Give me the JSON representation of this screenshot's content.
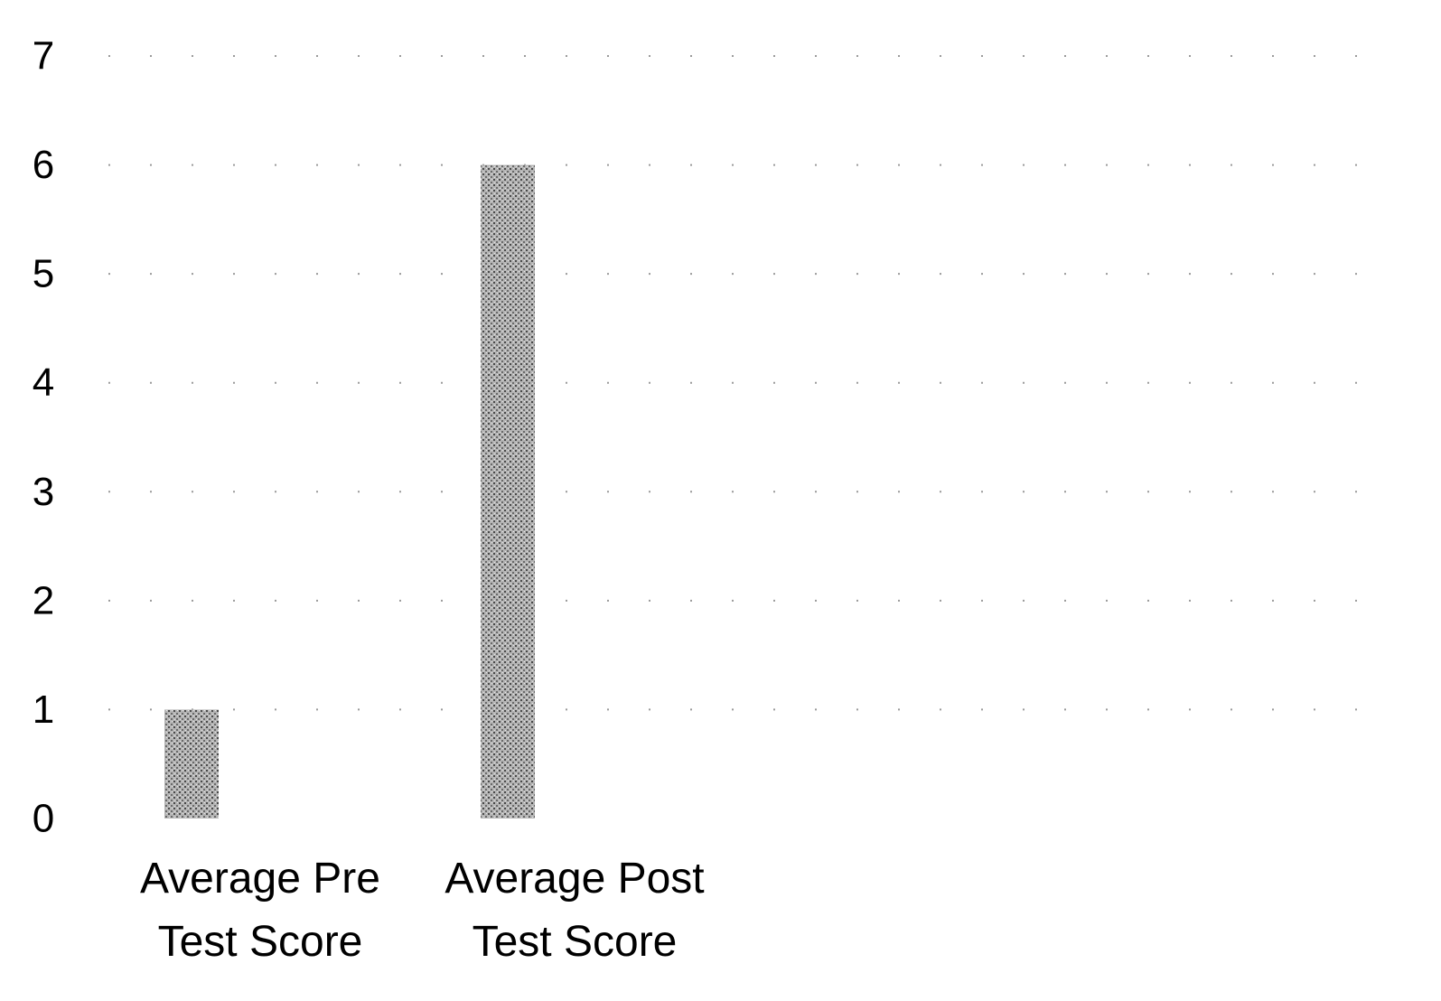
{
  "chart_data": {
    "type": "bar",
    "title": "",
    "xlabel": "",
    "ylabel": "",
    "categories": [
      [
        "Average Pre",
        "Test Score"
      ],
      [
        "Average Post",
        "Test Score"
      ]
    ],
    "values": [
      1,
      6
    ],
    "ylim": [
      0,
      7
    ],
    "yticks": [
      0,
      1,
      2,
      3,
      4,
      5,
      6,
      7
    ],
    "grid": "dotted horizontal",
    "legend": "none",
    "bar_fill": "stippled gray",
    "bar_color": "#8a8a8a",
    "grid_color": "#9a9a9a"
  }
}
